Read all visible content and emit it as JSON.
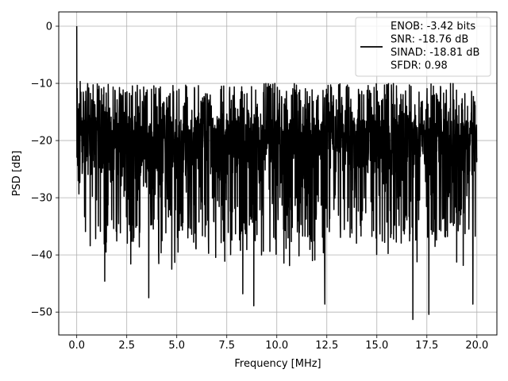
{
  "chart_data": {
    "type": "line",
    "xlabel": "Frequency [MHz]",
    "ylabel": "PSD [dB]",
    "xlim": [
      -0.9,
      21.0
    ],
    "ylim": [
      -54,
      2.5
    ],
    "xticks": [
      0.0,
      2.5,
      5.0,
      7.5,
      10.0,
      12.5,
      15.0,
      17.5,
      20.0
    ],
    "xtick_labels": [
      "0.0",
      "2.5",
      "5.0",
      "7.5",
      "10.0",
      "12.5",
      "15.0",
      "17.5",
      "20.0"
    ],
    "yticks": [
      0,
      -10,
      -20,
      -30,
      -40,
      -50
    ],
    "ytick_labels": [
      "0",
      "−10",
      "−20",
      "−30",
      "−40",
      "−50"
    ],
    "grid": true,
    "legend_placement": "upper-right",
    "series": [
      {
        "color": "#000000",
        "x_range": [
          0.0,
          20.0
        ],
        "noise_floor_db": -20,
        "noise_peak_db": -9.5,
        "noise_trough_db": -51.3,
        "spike": {
          "x": 0.0,
          "y": 0.0
        },
        "deep_dips": [
          {
            "x": 1.4,
            "y": -44.6
          },
          {
            "x": 3.6,
            "y": -47.5
          },
          {
            "x": 4.75,
            "y": -42.5
          },
          {
            "x": 8.3,
            "y": -46.8
          },
          {
            "x": 8.85,
            "y": -48.9
          },
          {
            "x": 12.4,
            "y": -48.6
          },
          {
            "x": 16.8,
            "y": -51.3
          },
          {
            "x": 17.6,
            "y": -50.4
          },
          {
            "x": 19.8,
            "y": -48.6
          }
        ]
      }
    ],
    "legend_text": [
      "ENOB: -3.42 bits",
      "SNR: -18.76 dB",
      "SINAD: -18.81 dB",
      "SFDR: 0.98"
    ]
  }
}
